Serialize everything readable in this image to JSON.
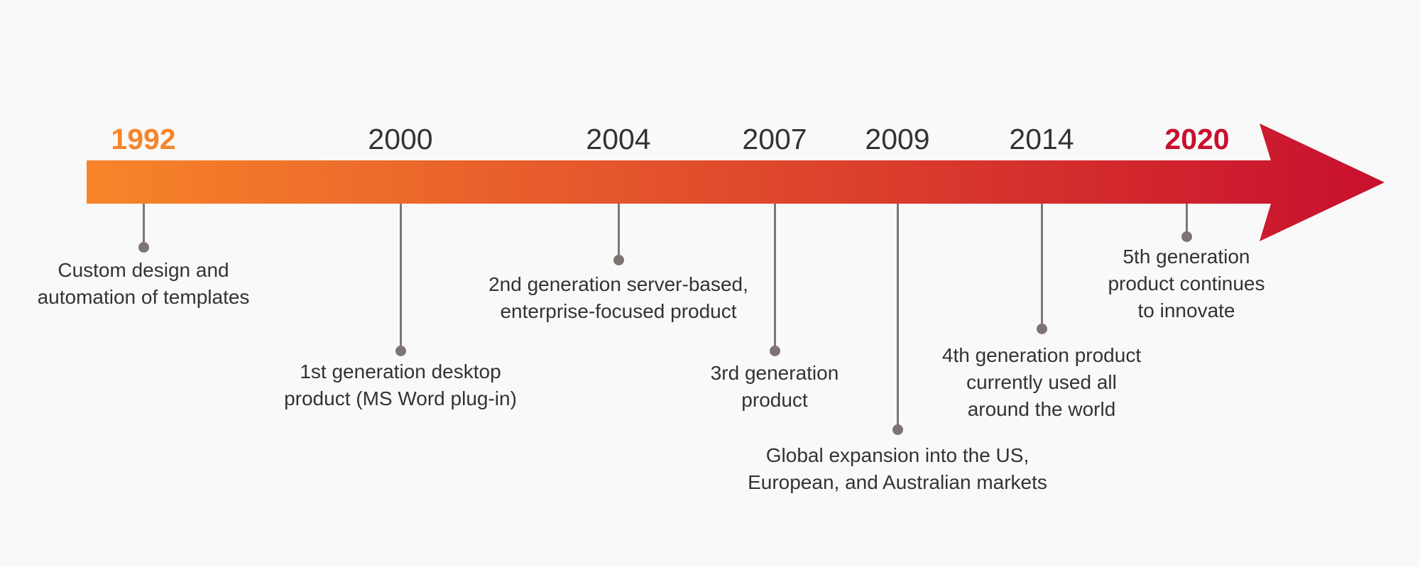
{
  "colors": {
    "gradient_start": "#f7852a",
    "gradient_end": "#c8102e",
    "stem": "#7f7474",
    "text": "#333333",
    "background": "#f9f9f9"
  },
  "milestones": [
    {
      "year": "1992",
      "lines": [
        "Custom design and",
        "automation of templates"
      ]
    },
    {
      "year": "2000",
      "lines": [
        "1st generation desktop",
        "product (MS Word plug-in)"
      ]
    },
    {
      "year": "2004",
      "lines": [
        "2nd generation server-based,",
        "enterprise-focused product"
      ]
    },
    {
      "year": "2007",
      "lines": [
        "3rd generation",
        "product"
      ]
    },
    {
      "year": "2009",
      "lines": [
        "Global expansion into the US,",
        "European, and Australian markets"
      ]
    },
    {
      "year": "2014",
      "lines": [
        "4th generation product",
        "currently used all",
        "around the world"
      ]
    },
    {
      "year": "2020",
      "lines": [
        "5th generation",
        "product continues",
        "to innovate"
      ]
    }
  ]
}
